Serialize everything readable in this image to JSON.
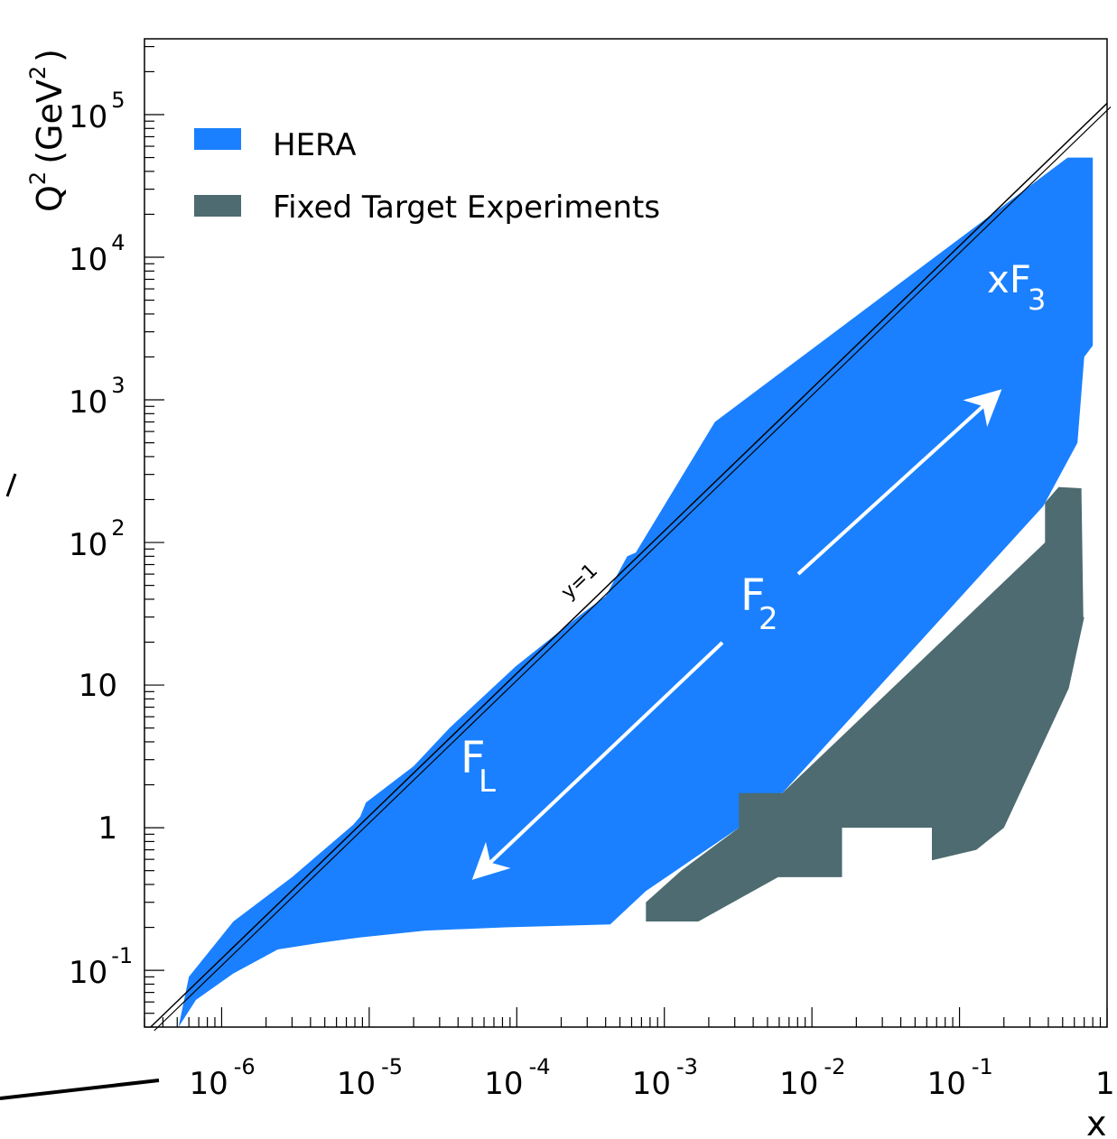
{
  "chart_data": {
    "type": "area",
    "xlabel": "x",
    "ylabel": "Q",
    "ylabel_unit_prefix": "(GeV",
    "ylabel_unit_suffix": ")",
    "ylabel_sup": "2",
    "ylabel_unit_sup": "2",
    "x_scale": "log",
    "y_scale": "log",
    "xlim": [
      3e-07,
      1
    ],
    "ylim": [
      0.04,
      340000
    ],
    "x_ticks": [
      {
        "base": "10",
        "exp": "-6",
        "value": 1e-06
      },
      {
        "base": "10",
        "exp": "-5",
        "value": 1e-05
      },
      {
        "base": "10",
        "exp": "-4",
        "value": 0.0001
      },
      {
        "base": "10",
        "exp": "-3",
        "value": 0.001
      },
      {
        "base": "10",
        "exp": "-2",
        "value": 0.01
      },
      {
        "base": "10",
        "exp": "-1",
        "value": 0.1
      },
      {
        "base": "1",
        "exp": "",
        "value": 1
      }
    ],
    "y_ticks": [
      {
        "base": "10",
        "exp": "-1",
        "value": 0.1
      },
      {
        "base": "1",
        "exp": "",
        "value": 1
      },
      {
        "base": "10",
        "exp": "",
        "value": 10
      },
      {
        "base": "10",
        "exp": "2",
        "value": 100
      },
      {
        "base": "10",
        "exp": "3",
        "value": 1000
      },
      {
        "base": "10",
        "exp": "4",
        "value": 10000
      },
      {
        "base": "10",
        "exp": "5",
        "value": 100000
      }
    ],
    "grid": false,
    "legend_position": "top-left",
    "colors": {
      "hera": "#1a80ff",
      "fixed": "#4d6b70",
      "axis": "#000000",
      "arrow": "#ffffff"
    },
    "series": [
      {
        "name": "HERA",
        "color": "#1a80ff",
        "polygon": [
          [
            5.1e-07,
            0.04
          ],
          [
            6.7e-07,
            0.062
          ],
          [
            1.2e-06,
            0.095
          ],
          [
            2.4e-06,
            0.14
          ],
          [
            4.5e-06,
            0.155
          ],
          [
            8.6e-06,
            0.17
          ],
          [
            2.4e-05,
            0.19
          ],
          [
            8.3e-05,
            0.2
          ],
          [
            0.00043,
            0.21
          ],
          [
            0.00075,
            0.36
          ],
          [
            0.0032,
            1.0
          ],
          [
            0.004,
            1.55
          ],
          [
            0.0042,
            1.7
          ],
          [
            0.0063,
            1.75
          ],
          [
            0.37,
            180
          ],
          [
            0.63,
            500
          ],
          [
            0.7,
            2000
          ],
          [
            0.8,
            2400
          ],
          [
            0.8,
            50000
          ],
          [
            0.54,
            50000
          ],
          [
            0.0022,
            700
          ],
          [
            0.00064,
            85
          ],
          [
            0.00056,
            80
          ],
          [
            0.0004,
            42
          ],
          [
            0.00028,
            32
          ],
          [
            9.8e-05,
            13.5
          ],
          [
            3.5e-05,
            5.0
          ],
          [
            2e-05,
            2.7
          ],
          [
            9.5e-06,
            1.5
          ],
          [
            8.7e-06,
            1.2
          ],
          [
            7.8e-06,
            1.05
          ],
          [
            3e-06,
            0.45
          ],
          [
            1.2e-06,
            0.22
          ],
          [
            6e-07,
            0.09
          ],
          [
            5.1e-07,
            0.04
          ]
        ]
      },
      {
        "name": "Fixed Target Experiments",
        "color": "#4d6b70",
        "polygon": [
          [
            0.00075,
            0.22
          ],
          [
            0.0017,
            0.22
          ],
          [
            0.0059,
            0.45
          ],
          [
            0.016,
            0.45
          ],
          [
            0.016,
            1.0
          ],
          [
            0.065,
            1.0
          ],
          [
            0.065,
            0.59
          ],
          [
            0.13,
            0.7
          ],
          [
            0.2,
            1.0
          ],
          [
            0.55,
            9.5
          ],
          [
            0.7,
            30
          ],
          [
            0.69,
            30
          ],
          [
            0.67,
            240
          ],
          [
            0.47,
            245
          ],
          [
            0.38,
            190
          ],
          [
            0.38,
            100
          ],
          [
            0.0063,
            1.75
          ],
          [
            0.0032,
            1.75
          ],
          [
            0.0032,
            1.0
          ],
          [
            0.0013,
            0.5
          ],
          [
            0.00075,
            0.3
          ],
          [
            0.00075,
            0.22
          ]
        ]
      }
    ],
    "kinematic_limit": {
      "label": "y=1",
      "points": [
        [
          3.3e-07,
          0.04
        ],
        [
          1,
          120000
        ]
      ]
    },
    "annotations": [
      {
        "id": "f2",
        "text": "F",
        "sub": "2"
      },
      {
        "id": "fl",
        "text": "F",
        "sub": "L"
      },
      {
        "id": "xf3",
        "text": "xF",
        "sub": "3"
      }
    ],
    "legend": [
      {
        "label": "HERA",
        "color": "#1a80ff"
      },
      {
        "label": "Fixed Target Experiments",
        "color": "#4d6b70"
      }
    ]
  }
}
